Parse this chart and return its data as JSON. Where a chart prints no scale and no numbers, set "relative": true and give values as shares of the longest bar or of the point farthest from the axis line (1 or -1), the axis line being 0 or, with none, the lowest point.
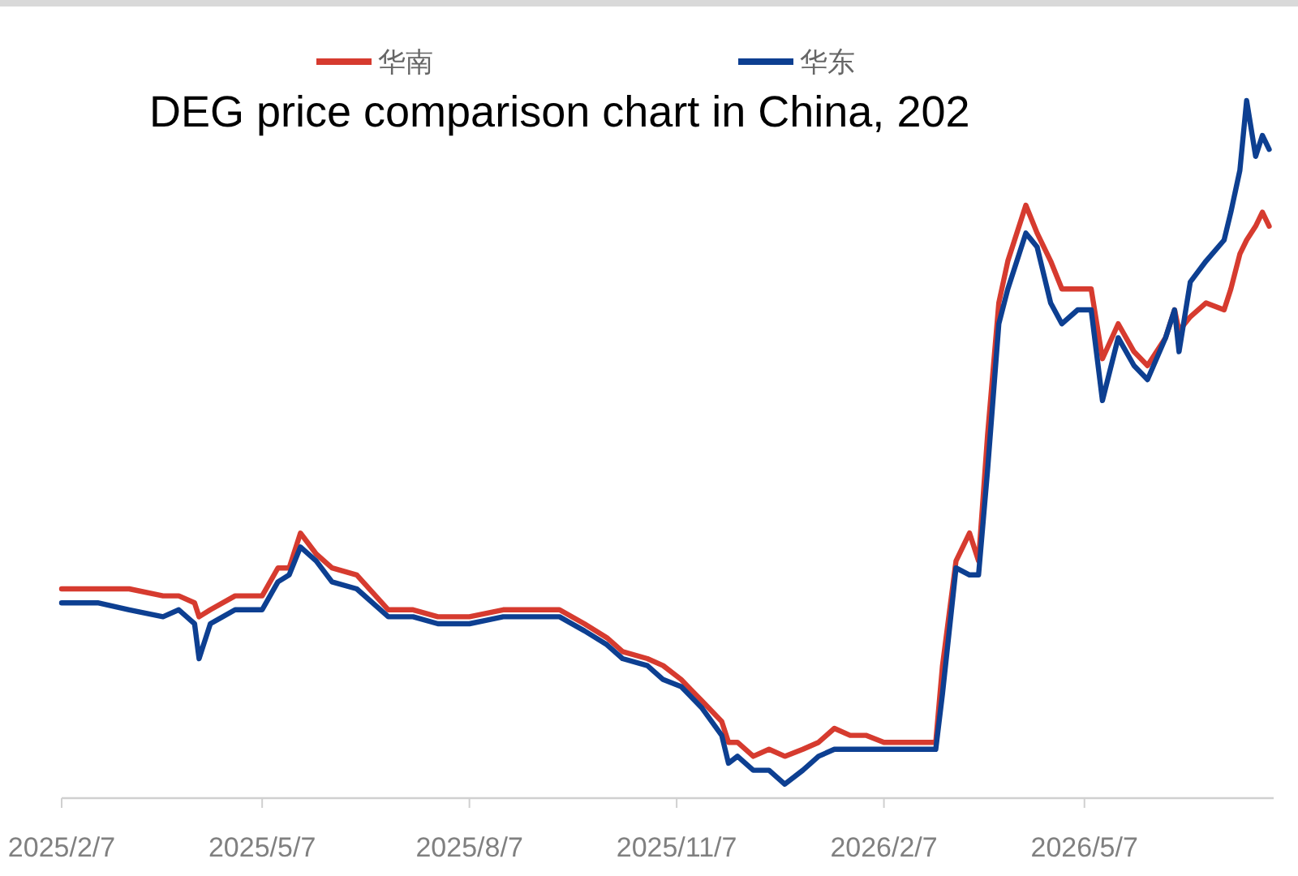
{
  "chart_data": {
    "type": "line",
    "title": "DEG price comparison chart in China, 202",
    "relative": true,
    "legend": "top",
    "line_style": "solid",
    "marker": "none",
    "x": [
      "2025-02-07",
      "2025-02-23",
      "2025-03-09",
      "2025-03-24",
      "2025-03-31",
      "2025-04-07",
      "2025-04-09",
      "2025-04-14",
      "2025-04-25",
      "2025-05-07",
      "2025-05-14",
      "2025-05-19",
      "2025-05-24",
      "2025-05-31",
      "2025-06-07",
      "2025-06-18",
      "2025-07-02",
      "2025-07-13",
      "2025-07-24",
      "2025-08-07",
      "2025-08-22",
      "2025-09-05",
      "2025-09-16",
      "2025-09-27",
      "2025-10-07",
      "2025-10-14",
      "2025-10-25",
      "2025-11-01",
      "2025-11-09",
      "2025-11-12",
      "2025-11-18",
      "2025-11-27",
      "2025-11-30",
      "2025-12-04",
      "2025-12-11",
      "2025-12-18",
      "2025-12-25",
      "2026-01-02",
      "2026-01-09",
      "2026-01-16",
      "2026-01-23",
      "2026-01-30",
      "2026-02-07",
      "2026-02-17",
      "2026-03-02",
      "2026-03-05",
      "2026-03-11",
      "2026-03-17",
      "2026-03-21",
      "2026-03-25",
      "2026-03-30",
      "2026-04-03",
      "2026-04-06",
      "2026-04-11",
      "2026-04-16",
      "2026-04-22",
      "2026-04-27",
      "2026-05-04",
      "2026-05-10",
      "2026-05-15",
      "2026-05-22",
      "2026-05-29",
      "2026-06-04",
      "2026-06-12",
      "2026-06-16",
      "2026-06-18",
      "2026-06-23",
      "2026-06-30",
      "2026-07-08",
      "2026-07-11",
      "2026-07-15",
      "2026-07-18",
      "2026-07-22",
      "2026-07-25",
      "2026-07-28"
    ],
    "series": [
      {
        "name": "华南",
        "color": "#d63b2f",
        "values": [
          0.3,
          0.3,
          0.3,
          0.29,
          0.29,
          0.28,
          0.26,
          0.27,
          0.29,
          0.29,
          0.33,
          0.33,
          0.38,
          0.35,
          0.33,
          0.32,
          0.27,
          0.27,
          0.26,
          0.26,
          0.27,
          0.27,
          0.27,
          0.25,
          0.23,
          0.21,
          0.2,
          0.19,
          0.17,
          0.16,
          0.14,
          0.11,
          0.08,
          0.08,
          0.06,
          0.07,
          0.06,
          0.07,
          0.08,
          0.1,
          0.09,
          0.09,
          0.08,
          0.08,
          0.08,
          0.19,
          0.34,
          0.38,
          0.34,
          0.52,
          0.71,
          0.77,
          0.8,
          0.85,
          0.81,
          0.77,
          0.73,
          0.73,
          0.73,
          0.63,
          0.68,
          0.64,
          0.62,
          0.66,
          0.7,
          0.67,
          0.69,
          0.71,
          0.7,
          0.73,
          0.78,
          0.8,
          0.82,
          0.84,
          0.82
        ]
      },
      {
        "name": "华东",
        "color": "#0d3f91",
        "values": [
          0.28,
          0.28,
          0.27,
          0.26,
          0.27,
          0.25,
          0.2,
          0.25,
          0.27,
          0.27,
          0.31,
          0.32,
          0.36,
          0.34,
          0.31,
          0.3,
          0.26,
          0.26,
          0.25,
          0.25,
          0.26,
          0.26,
          0.26,
          0.24,
          0.22,
          0.2,
          0.19,
          0.17,
          0.16,
          0.15,
          0.13,
          0.09,
          0.05,
          0.06,
          0.04,
          0.04,
          0.02,
          0.04,
          0.06,
          0.07,
          0.07,
          0.07,
          0.07,
          0.07,
          0.07,
          0.15,
          0.33,
          0.32,
          0.32,
          0.47,
          0.68,
          0.73,
          0.76,
          0.81,
          0.79,
          0.71,
          0.68,
          0.7,
          0.7,
          0.57,
          0.66,
          0.62,
          0.6,
          0.66,
          0.7,
          0.64,
          0.74,
          0.77,
          0.8,
          0.84,
          0.9,
          1,
          0.92,
          0.95,
          0.93
        ]
      }
    ],
    "xlim": [
      "2025-02-07",
      "2026-07-30"
    ],
    "xticks": [
      {
        "value": "2025-02-07",
        "label": "2025/2/7"
      },
      {
        "value": "2025-05-07",
        "label": "2025/5/7"
      },
      {
        "value": "2025-08-07",
        "label": "2025/8/7"
      },
      {
        "value": "2025-11-07",
        "label": "2025/11/7"
      },
      {
        "value": "2026-02-07",
        "label": "2026/2/7"
      },
      {
        "value": "2026-05-07",
        "label": "2026/5/7"
      }
    ]
  }
}
